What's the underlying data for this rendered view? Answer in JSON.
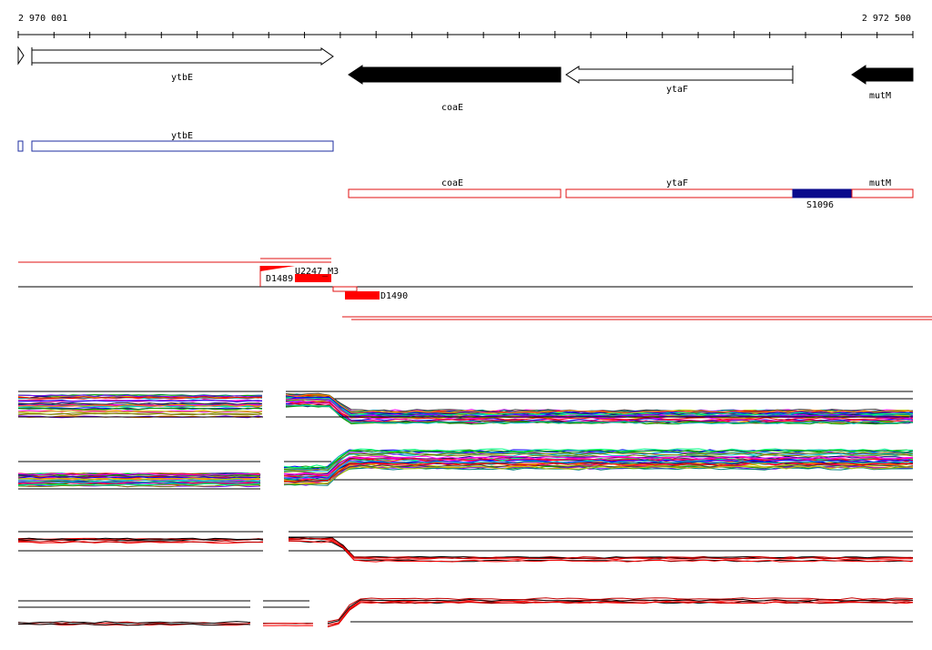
{
  "ruler": {
    "start_label": "2 970 001",
    "end_label": "2 972 500"
  },
  "genes": [
    {
      "id": "ytbE",
      "name": "ytbE",
      "strand": "+"
    },
    {
      "id": "coaE",
      "name": "coaE",
      "strand": "-"
    },
    {
      "id": "ytaF",
      "name": "ytaF",
      "strand": "-"
    },
    {
      "id": "mutM",
      "name": "mutM",
      "strand": "-"
    }
  ],
  "transcripts": {
    "plus": [
      {
        "name": "ytbE"
      }
    ],
    "minus": [
      {
        "name": "coaE"
      },
      {
        "name": "ytaF"
      },
      {
        "name": "mutM"
      }
    ]
  },
  "regulatory_feature": {
    "name": "S1096"
  },
  "probe_labels": [
    "D1489",
    "U2247_M3",
    "D1490"
  ],
  "colors": {
    "plus_outline": "#1e2ea0",
    "minus_outline": "#e01010",
    "feature_fill": "#0a0a8c",
    "probe_fill": "#ff0000",
    "strong_gene_fill": "#000000"
  }
}
